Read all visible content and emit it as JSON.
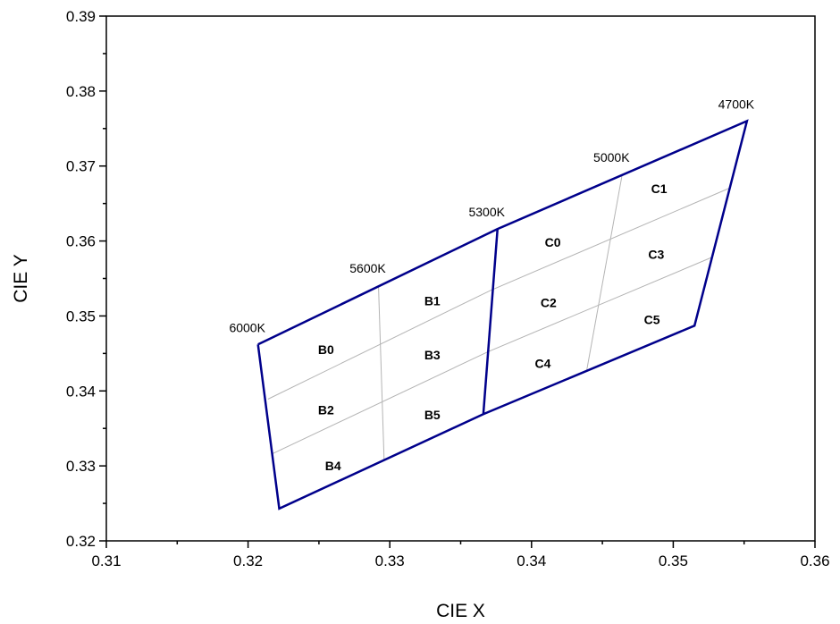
{
  "chart_data": {
    "type": "line",
    "title": "",
    "xlabel": "CIE X",
    "ylabel": "CIE Y",
    "xlim": [
      0.31,
      0.36
    ],
    "ylim": [
      0.32,
      0.39
    ],
    "xticks": [
      0.31,
      0.32,
      0.33,
      0.34,
      0.35,
      0.36
    ],
    "yticks": [
      0.32,
      0.33,
      0.34,
      0.35,
      0.36,
      0.37,
      0.38,
      0.39
    ],
    "xtick_labels": [
      "0.31",
      "0.32",
      "0.33",
      "0.34",
      "0.35",
      "0.36"
    ],
    "ytick_labels": [
      "0.32",
      "0.33",
      "0.34",
      "0.35",
      "0.36",
      "0.37",
      "0.38",
      "0.39"
    ],
    "grid": false,
    "colors": {
      "boundary": "#00008b",
      "subdivision": "#b4b4b4",
      "axis": "#000000"
    },
    "boundary_lines": [
      {
        "points": [
          [
            0.3207,
            0.3462
          ],
          [
            0.3376,
            0.3616
          ],
          [
            0.3552,
            0.376
          ],
          [
            0.3515,
            0.3487
          ],
          [
            0.3366,
            0.3369
          ],
          [
            0.3222,
            0.3243
          ],
          [
            0.3207,
            0.3462
          ]
        ]
      },
      {
        "points": [
          [
            0.3376,
            0.3616
          ],
          [
            0.3366,
            0.3369
          ]
        ]
      }
    ],
    "subdivision_lines": [
      {
        "points": [
          [
            0.3214,
            0.3389
          ],
          [
            0.3371,
            0.3534
          ],
          [
            0.3539,
            0.367
          ]
        ]
      },
      {
        "points": [
          [
            0.3217,
            0.3316
          ],
          [
            0.3369,
            0.3452
          ],
          [
            0.3527,
            0.3578
          ]
        ]
      },
      {
        "points": [
          [
            0.3292,
            0.3541
          ],
          [
            0.3296,
            0.3307
          ]
        ]
      },
      {
        "points": [
          [
            0.3464,
            0.3689
          ],
          [
            0.3439,
            0.3428
          ]
        ]
      }
    ],
    "cct_labels": [
      {
        "text": "6000K",
        "x": 0.3207,
        "y": 0.3462
      },
      {
        "text": "5600K",
        "x": 0.3292,
        "y": 0.3541
      },
      {
        "text": "5300K",
        "x": 0.3376,
        "y": 0.3616
      },
      {
        "text": "5000K",
        "x": 0.3464,
        "y": 0.3689
      },
      {
        "text": "4700K",
        "x": 0.3552,
        "y": 0.376
      }
    ],
    "bin_labels": [
      {
        "text": "B0",
        "x": 0.3255,
        "y": 0.3455
      },
      {
        "text": "B1",
        "x": 0.333,
        "y": 0.352
      },
      {
        "text": "B2",
        "x": 0.3255,
        "y": 0.3375
      },
      {
        "text": "B3",
        "x": 0.333,
        "y": 0.3448
      },
      {
        "text": "B4",
        "x": 0.326,
        "y": 0.33
      },
      {
        "text": "B5",
        "x": 0.333,
        "y": 0.3368
      },
      {
        "text": "C0",
        "x": 0.3415,
        "y": 0.3598
      },
      {
        "text": "C1",
        "x": 0.349,
        "y": 0.367
      },
      {
        "text": "C2",
        "x": 0.3412,
        "y": 0.3518
      },
      {
        "text": "C3",
        "x": 0.3488,
        "y": 0.3582
      },
      {
        "text": "C4",
        "x": 0.3408,
        "y": 0.3437
      },
      {
        "text": "C5",
        "x": 0.3485,
        "y": 0.3495
      }
    ]
  }
}
